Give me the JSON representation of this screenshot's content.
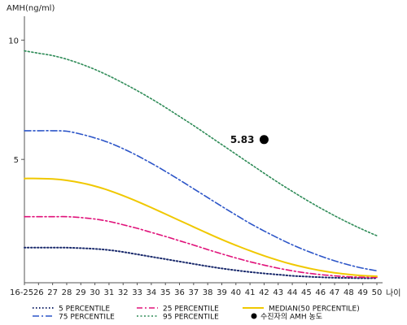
{
  "chart_data": {
    "type": "line",
    "ylabel": "AMH(ng/ml)",
    "xlabel": "나이",
    "ylim": [
      0,
      11
    ],
    "yticks": [
      5,
      10
    ],
    "ytick_labels": [
      "5",
      "10"
    ],
    "x_labels": [
      "16-25",
      "26",
      "27",
      "28",
      "29",
      "30",
      "31",
      "32",
      "33",
      "34",
      "35",
      "36",
      "37",
      "38",
      "39",
      "40",
      "41",
      "42",
      "43",
      "44",
      "45",
      "46",
      "47",
      "48",
      "49",
      "50"
    ],
    "series": [
      {
        "name": "5 PERCENTILE",
        "color": "#1a2a6c",
        "dash": "1.5,2.5",
        "width": 2,
        "values": [
          1.3,
          1.3,
          1.3,
          1.3,
          1.28,
          1.25,
          1.2,
          1.12,
          1.02,
          0.92,
          0.82,
          0.72,
          0.62,
          0.52,
          0.43,
          0.35,
          0.28,
          0.22,
          0.17,
          0.12,
          0.09,
          0.06,
          0.04,
          0.03,
          0.02,
          0.02
        ]
      },
      {
        "name": "25 PERCENTILE",
        "color": "#e0127a",
        "dash": "7,3,2,3",
        "width": 1.6,
        "values": [
          2.6,
          2.6,
          2.6,
          2.6,
          2.56,
          2.5,
          2.4,
          2.26,
          2.11,
          1.94,
          1.77,
          1.59,
          1.41,
          1.22,
          1.04,
          0.87,
          0.71,
          0.57,
          0.44,
          0.33,
          0.24,
          0.17,
          0.12,
          0.08,
          0.06,
          0.05
        ]
      },
      {
        "name": "MEDIAN(50 PERCENTILE)",
        "color": "#f0c800",
        "dash": "",
        "width": 2,
        "values": [
          4.2,
          4.2,
          4.18,
          4.12,
          4.02,
          3.88,
          3.7,
          3.48,
          3.24,
          2.98,
          2.71,
          2.44,
          2.17,
          1.9,
          1.64,
          1.4,
          1.17,
          0.96,
          0.77,
          0.6,
          0.46,
          0.34,
          0.25,
          0.18,
          0.13,
          0.1
        ]
      },
      {
        "name": "75 PERCENTILE",
        "color": "#2c55c8",
        "dash": "8,3,2,3",
        "width": 1.6,
        "values": [
          6.2,
          6.2,
          6.2,
          6.18,
          6.06,
          5.9,
          5.7,
          5.45,
          5.16,
          4.84,
          4.5,
          4.14,
          3.77,
          3.4,
          3.03,
          2.67,
          2.32,
          2,
          1.7,
          1.42,
          1.17,
          0.95,
          0.75,
          0.58,
          0.44,
          0.33
        ]
      },
      {
        "name": "95 PERCENTILE",
        "color": "#2e8b57",
        "dash": "2,2.5",
        "width": 1.6,
        "values": [
          9.55,
          9.45,
          9.35,
          9.2,
          9.0,
          8.77,
          8.5,
          8.2,
          7.88,
          7.54,
          7.18,
          6.8,
          6.42,
          6.02,
          5.62,
          5.22,
          4.82,
          4.42,
          4.03,
          3.66,
          3.3,
          2.96,
          2.64,
          2.34,
          2.06,
          1.8
        ]
      }
    ],
    "marker": {
      "x": "42",
      "y": 5.83,
      "label": "5.83",
      "color": "#000000"
    },
    "legend": {
      "position": "bottom",
      "items": [
        {
          "label": "5 PERCENTILE",
          "color": "#1a2a6c",
          "dash": "1.5,2.5",
          "width": 2,
          "kind": "line"
        },
        {
          "label": "25 PERCENTILE",
          "color": "#e0127a",
          "dash": "7,3,2,3",
          "width": 1.6,
          "kind": "line"
        },
        {
          "label": "MEDIAN(50 PERCENTILE)",
          "color": "#f0c800",
          "dash": "",
          "width": 2,
          "kind": "line"
        },
        {
          "label": "75 PERCENTILE",
          "color": "#2c55c8",
          "dash": "8,3,2,3",
          "width": 1.6,
          "kind": "line"
        },
        {
          "label": "95 PERCENTILE",
          "color": "#2e8b57",
          "dash": "2,2.5",
          "width": 1.6,
          "kind": "line"
        },
        {
          "label": "수진자의 AMH 농도",
          "color": "#000000",
          "kind": "dot"
        }
      ]
    }
  }
}
